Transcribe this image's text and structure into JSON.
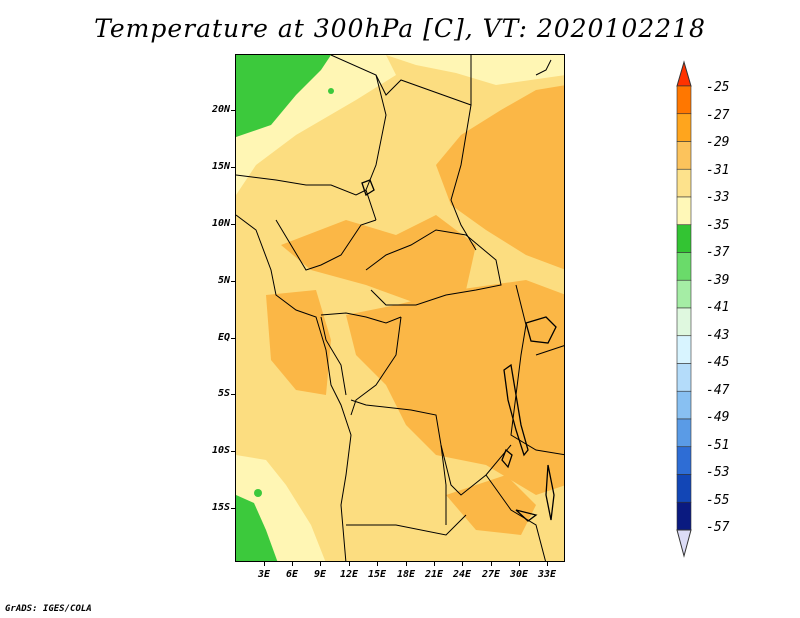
{
  "title": "Temperature at 300hPa [C], VT: 2020102218",
  "footer": "GrADS: IGES/COLA",
  "lat_labels": [
    "20N",
    "15N",
    "10N",
    "5N",
    "EQ",
    "5S",
    "10S",
    "15S"
  ],
  "lon_labels": [
    "3E",
    "6E",
    "9E",
    "12E",
    "15E",
    "18E",
    "21E",
    "24E",
    "27E",
    "30E",
    "33E"
  ],
  "colorbar": {
    "labels": [
      "-25",
      "-27",
      "-29",
      "-31",
      "-33",
      "-35",
      "-37",
      "-39",
      "-41",
      "-43",
      "-45",
      "-47",
      "-49",
      "-51",
      "-53",
      "-55",
      "-57"
    ],
    "colors": [
      "#ff3300",
      "#ff7700",
      "#ffa51d",
      "#fcc35c",
      "#fde28c",
      "#fff8b8",
      "#33c433",
      "#6adb6a",
      "#a5eda5",
      "#dff8df",
      "#d8f4ff",
      "#b4dcfa",
      "#88c0f2",
      "#5a9be6",
      "#2e6dd5",
      "#1246b6",
      "#0a1a80",
      "#dcdcf6"
    ]
  },
  "colors": {
    "dominant_fill": "#fcdd80",
    "warm_fill": "#fbb746",
    "cool_fill": "#fff6b4",
    "green_fill": "#3cc93c"
  }
}
